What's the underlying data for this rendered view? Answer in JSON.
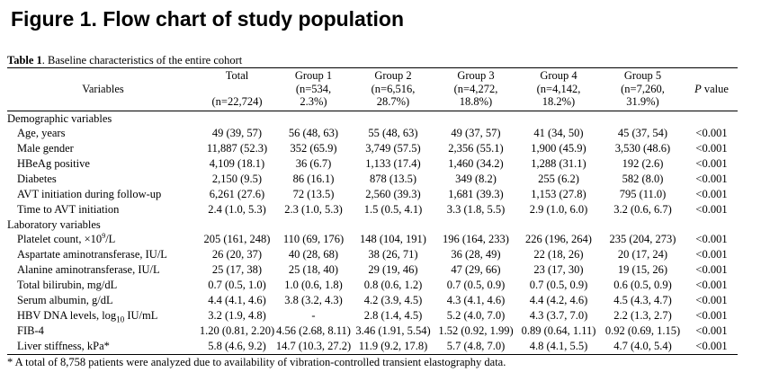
{
  "figure_title": "Figure 1. Flow chart of study population",
  "table": {
    "caption_bold": "Table 1",
    "caption_rest": ". Baseline characteristics of the entire cohort",
    "headers": {
      "variables": "Variables",
      "total_label": "Total",
      "total_n": "(n=22,724)",
      "groups": [
        {
          "label": "Group 1",
          "n": "(n=534,",
          "pct": "2.3%)"
        },
        {
          "label": "Group 2",
          "n": "(n=6,516,",
          "pct": "28.7%)"
        },
        {
          "label": "Group 3",
          "n": "(n=4,272,",
          "pct": "18.8%)"
        },
        {
          "label": "Group 4",
          "n": "(n=4,142,",
          "pct": "18.2%)"
        },
        {
          "label": "Group 5",
          "n": "(n=7,260,",
          "pct": "31.9%)"
        }
      ],
      "p_value_italic": "P",
      "p_value_rest": " value"
    },
    "sections": [
      {
        "title": "Demographic variables",
        "rows": [
          {
            "label": "Age, years",
            "total": "49 (39, 57)",
            "g1": "56 (48, 63)",
            "g2": "55 (48, 63)",
            "g3": "49 (37, 57)",
            "g4": "41 (34, 50)",
            "g5": "45 (37, 54)",
            "p": "<0.001"
          },
          {
            "label": "Male gender",
            "total": "11,887 (52.3)",
            "g1": "352 (65.9)",
            "g2": "3,749 (57.5)",
            "g3": "2,356 (55.1)",
            "g4": "1,900 (45.9)",
            "g5": "3,530 (48.6)",
            "p": "<0.001"
          },
          {
            "label": "HBeAg positive",
            "total": "4,109 (18.1)",
            "g1": "36 (6.7)",
            "g2": "1,133 (17.4)",
            "g3": "1,460 (34.2)",
            "g4": "1,288 (31.1)",
            "g5": "192 (2.6)",
            "p": "<0.001"
          },
          {
            "label": "Diabetes",
            "total": "2,150 (9.5)",
            "g1": "86 (16.1)",
            "g2": "878 (13.5)",
            "g3": "349 (8.2)",
            "g4": "255 (6.2)",
            "g5": "582 (8.0)",
            "p": "<0.001"
          },
          {
            "label": "AVT initiation during follow-up",
            "total": "6,261 (27.6)",
            "g1": "72 (13.5)",
            "g2": "2,560 (39.3)",
            "g3": "1,681 (39.3)",
            "g4": "1,153 (27.8)",
            "g5": "795 (11.0)",
            "p": "<0.001"
          },
          {
            "label": "Time to AVT initiation",
            "total": "2.4 (1.0, 5.3)",
            "g1": "2.3 (1.0, 5.3)",
            "g2": "1.5 (0.5, 4.1)",
            "g3": "3.3 (1.8, 5.5)",
            "g4": "2.9 (1.0, 6.0)",
            "g5": "3.2 (0.6, 6.7)",
            "p": "<0.001"
          }
        ]
      },
      {
        "title": "Laboratory variables",
        "rows": [
          {
            "label_pre": "Platelet count, ×10",
            "label_sup": "9",
            "label_post": "/L",
            "total": "205 (161, 248)",
            "g1": "110 (69, 176)",
            "g2": "148 (104, 191)",
            "g3": "196 (164, 233)",
            "g4": "226 (196, 264)",
            "g5": "235 (204, 273)",
            "p": "<0.001"
          },
          {
            "label": "Aspartate aminotransferase, IU/L",
            "total": "26 (20, 37)",
            "g1": "40 (28, 68)",
            "g2": "38 (26, 71)",
            "g3": "36 (28, 49)",
            "g4": "22 (18, 26)",
            "g5": "20 (17, 24)",
            "p": "<0.001"
          },
          {
            "label": "Alanine aminotransferase, IU/L",
            "total": "25 (17, 38)",
            "g1": "25 (18, 40)",
            "g2": "29 (19, 46)",
            "g3": "47 (29, 66)",
            "g4": "23 (17, 30)",
            "g5": "19 (15, 26)",
            "p": "<0.001"
          },
          {
            "label": "Total bilirubin, mg/dL",
            "total": "0.7 (0.5, 1.0)",
            "g1": "1.0 (0.6, 1.8)",
            "g2": "0.8 (0.6, 1.2)",
            "g3": "0.7 (0.5, 0.9)",
            "g4": "0.7 (0.5, 0.9)",
            "g5": "0.6 (0.5, 0.9)",
            "p": "<0.001"
          },
          {
            "label": "Serum albumin, g/dL",
            "total": "4.4 (4.1, 4.6)",
            "g1": "3.8 (3.2, 4.3)",
            "g2": "4.2 (3.9, 4.5)",
            "g3": "4.3 (4.1, 4.6)",
            "g4": "4.4 (4.2, 4.6)",
            "g5": "4.5 (4.3, 4.7)",
            "p": "<0.001"
          },
          {
            "label_pre": "HBV DNA levels, log",
            "label_sub": "10",
            "label_post": " IU/mL",
            "total": "3.2 (1.9, 4.8)",
            "g1": "-",
            "g2": "2.8 (1.4, 4.5)",
            "g3": "5.2 (4.0, 7.0)",
            "g4": "4.3 (3.7, 7.0)",
            "g5": "2.2 (1.3, 2.7)",
            "p": "<0.001"
          },
          {
            "label": "FIB-4",
            "total": "1.20 (0.81, 2.20)",
            "g1": "4.56 (2.68, 8.11)",
            "g2": "3.46 (1.91, 5.54)",
            "g3": "1.52 (0.92, 1.99)",
            "g4": "0.89 (0.64, 1.11)",
            "g5": "0.92 (0.69, 1.15)",
            "p": "<0.001"
          },
          {
            "label": "Liver stiffness, kPa*",
            "total": "5.8 (4.6, 9.2)",
            "g1": "14.7 (10.3, 27.2)",
            "g2": "11.9 (9.2, 17.8)",
            "g3": "5.7 (4.8, 7.0)",
            "g4": "4.8 (4.1, 5.5)",
            "g5": "4.7 (4.0, 5.4)",
            "p": "<0.001"
          }
        ]
      }
    ],
    "footnote": "* A total of 8,758 patients were analyzed due to availability of vibration-controlled transient elastography data."
  }
}
